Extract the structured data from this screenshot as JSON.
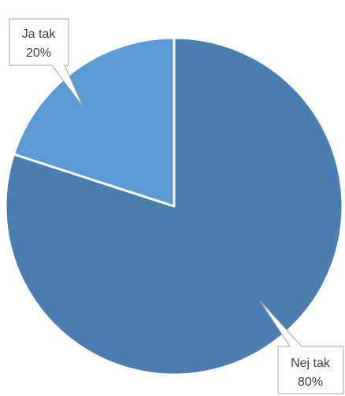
{
  "chart_data": {
    "type": "pie",
    "slices": [
      {
        "label": "Nej tak",
        "value": 80,
        "value_label": "80%",
        "color": "#4A7EB0"
      },
      {
        "label": "Ja tak",
        "value": 20,
        "value_label": "20%",
        "color": "#5B9BD5"
      }
    ],
    "title": "",
    "legend": "none",
    "data_labels": "callouts"
  }
}
